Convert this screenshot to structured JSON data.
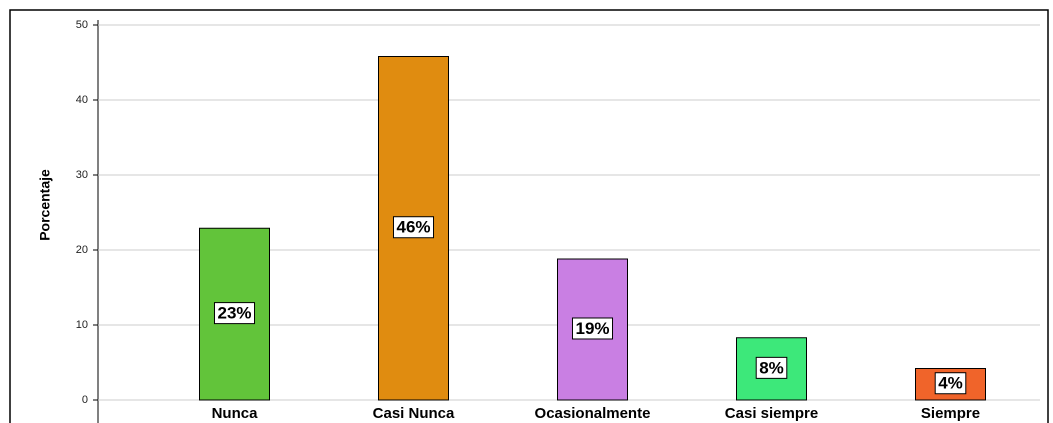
{
  "chart_data": {
    "type": "bar",
    "ylabel": "Porcentaje",
    "categories": [
      "Nunca",
      "Casi Nunca",
      "Ocasionalmente",
      "Casi siempre",
      "Siempre"
    ],
    "values": [
      22.9,
      45.8,
      18.8,
      8.3,
      4.2
    ],
    "value_labels": [
      "23%",
      "46%",
      "19%",
      "8%",
      "4%"
    ],
    "colors": [
      "#62c43a",
      "#e08c10",
      "#c97fe3",
      "#3de87a",
      "#f0642a"
    ],
    "ylim": [
      0,
      50
    ],
    "yticks": [
      0,
      10,
      20,
      30,
      40,
      50
    ],
    "grid": true
  }
}
